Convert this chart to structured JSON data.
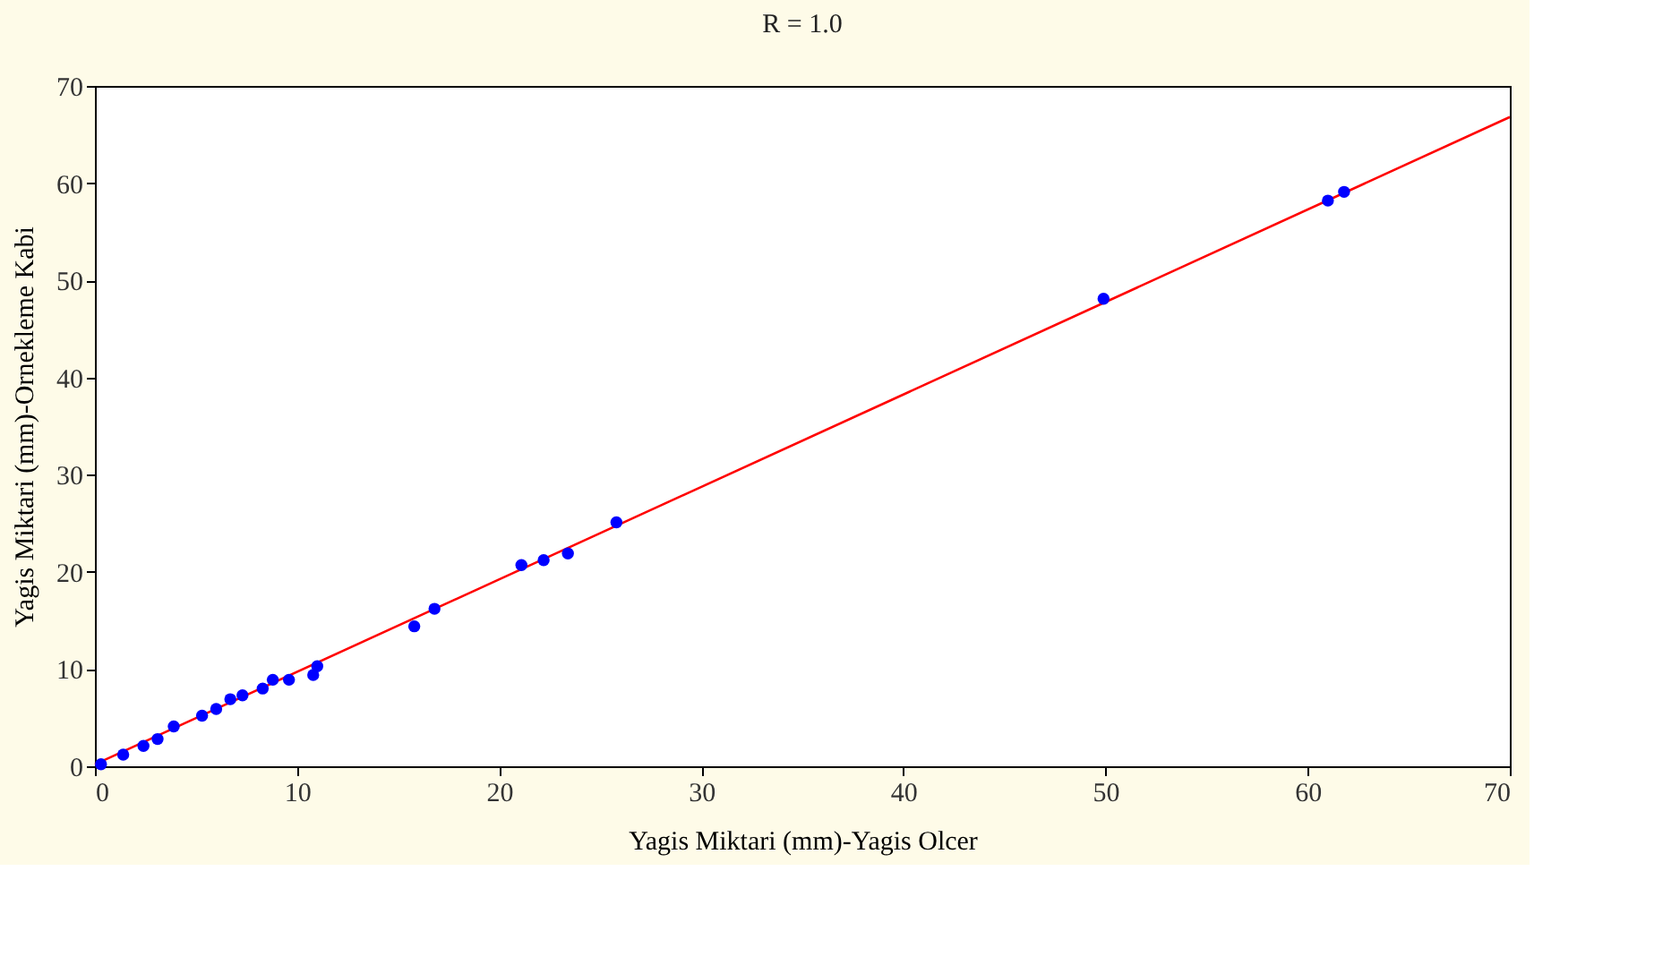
{
  "chart_data": {
    "type": "scatter",
    "title": "R = 1.0",
    "xlabel": "Yagis Miktari (mm)-Yagis Olcer",
    "ylabel": "Yagis Miktari (mm)-Ornekleme Kabi",
    "xlim": [
      0,
      70
    ],
    "ylim": [
      0,
      70
    ],
    "xticks": [
      0,
      10,
      20,
      30,
      40,
      50,
      60,
      70
    ],
    "yticks": [
      0,
      10,
      20,
      30,
      40,
      50,
      60,
      70
    ],
    "grid": false,
    "series": [
      {
        "marker": "circle",
        "color": "#0000ff",
        "x": [
          0.3,
          1.4,
          2.4,
          3.1,
          3.9,
          5.3,
          6.0,
          6.7,
          7.3,
          8.3,
          8.8,
          9.6,
          10.8,
          11.0,
          15.8,
          16.8,
          21.1,
          22.2,
          23.4,
          25.8,
          49.9,
          61.0,
          61.8
        ],
        "values": [
          0.2,
          1.2,
          2.1,
          2.8,
          4.1,
          5.2,
          5.9,
          6.9,
          7.3,
          8.0,
          8.9,
          8.9,
          9.4,
          10.3,
          14.4,
          16.2,
          20.7,
          21.2,
          21.9,
          25.1,
          48.1,
          58.2,
          59.1
        ]
      },
      {
        "type": "line",
        "marker": "none",
        "line_style": "solid",
        "color": "#ff0000",
        "x": [
          0,
          70
        ],
        "values": [
          0.2,
          66.8
        ]
      }
    ]
  }
}
